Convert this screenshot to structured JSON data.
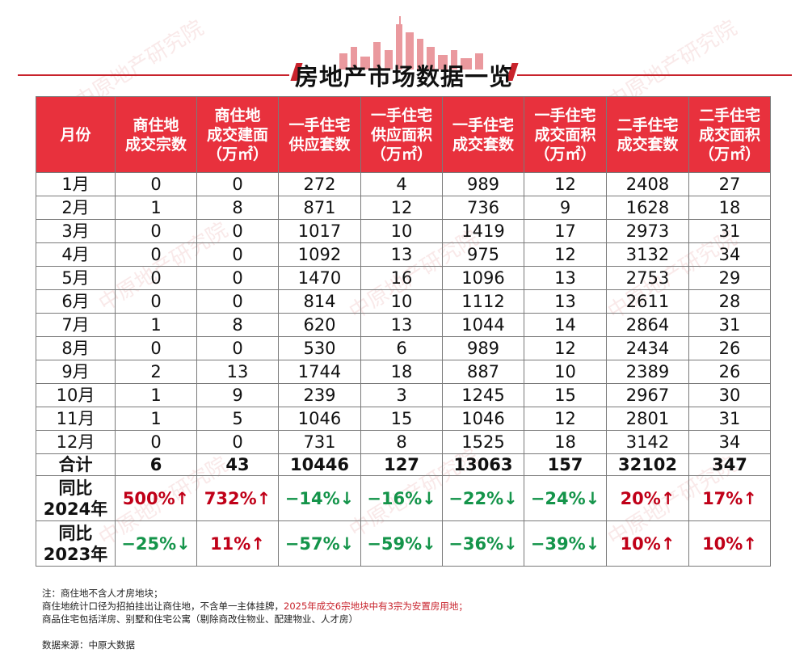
{
  "header": {
    "title": "房地产市场数据一览",
    "watermark": "中原地产研究院"
  },
  "table": {
    "columns": [
      "月份",
      "商住地\n成交宗数",
      "商住地\n成交建面\n（万㎡）",
      "一手住宅\n供应套数",
      "一手住宅\n供应面积\n（万㎡）",
      "一手住宅\n成交套数",
      "一手住宅\n成交面积\n（万㎡）",
      "二手住宅\n成交套数",
      "二手住宅\n成交面积\n（万㎡）"
    ],
    "rows": [
      [
        "1月",
        "0",
        "0",
        "272",
        "4",
        "989",
        "12",
        "2408",
        "27"
      ],
      [
        "2月",
        "1",
        "8",
        "871",
        "12",
        "736",
        "9",
        "1628",
        "18"
      ],
      [
        "3月",
        "0",
        "0",
        "1017",
        "10",
        "1419",
        "17",
        "2973",
        "31"
      ],
      [
        "4月",
        "0",
        "0",
        "1092",
        "13",
        "975",
        "12",
        "3132",
        "34"
      ],
      [
        "5月",
        "0",
        "0",
        "1470",
        "16",
        "1096",
        "13",
        "2753",
        "29"
      ],
      [
        "6月",
        "0",
        "0",
        "814",
        "10",
        "1112",
        "13",
        "2611",
        "28"
      ],
      [
        "7月",
        "1",
        "8",
        "620",
        "13",
        "1044",
        "14",
        "2864",
        "31"
      ],
      [
        "8月",
        "0",
        "0",
        "530",
        "6",
        "989",
        "12",
        "2434",
        "26"
      ],
      [
        "9月",
        "2",
        "13",
        "1744",
        "18",
        "887",
        "10",
        "2389",
        "26"
      ],
      [
        "10月",
        "1",
        "9",
        "239",
        "3",
        "1245",
        "15",
        "2967",
        "30"
      ],
      [
        "11月",
        "1",
        "5",
        "1046",
        "15",
        "1046",
        "12",
        "2801",
        "31"
      ],
      [
        "12月",
        "0",
        "0",
        "731",
        "8",
        "1525",
        "18",
        "3142",
        "34"
      ]
    ],
    "total": [
      "合计",
      "6",
      "43",
      "10446",
      "127",
      "13063",
      "157",
      "32102",
      "347"
    ],
    "yoy": [
      {
        "label": "同比\n2024年",
        "values": [
          {
            "text": "500%↑",
            "dir": "up"
          },
          {
            "text": "732%↑",
            "dir": "up"
          },
          {
            "text": "−14%↓",
            "dir": "down"
          },
          {
            "text": "−16%↓",
            "dir": "down"
          },
          {
            "text": "−22%↓",
            "dir": "down"
          },
          {
            "text": "−24%↓",
            "dir": "down"
          },
          {
            "text": "20%↑",
            "dir": "up"
          },
          {
            "text": "17%↑",
            "dir": "up"
          }
        ]
      },
      {
        "label": "同比\n2023年",
        "values": [
          {
            "text": "−25%↓",
            "dir": "down"
          },
          {
            "text": "11%↑",
            "dir": "up"
          },
          {
            "text": "−57%↓",
            "dir": "down"
          },
          {
            "text": "−59%↓",
            "dir": "down"
          },
          {
            "text": "−36%↓",
            "dir": "down"
          },
          {
            "text": "−39%↓",
            "dir": "down"
          },
          {
            "text": "10%↑",
            "dir": "up"
          },
          {
            "text": "10%↑",
            "dir": "up"
          }
        ]
      }
    ]
  },
  "notes": {
    "line1": "注：商住地不含人才房地块；",
    "line2_a": "商住地统计口径为招拍挂出让商住地，不含单一主体挂牌，",
    "line2_b": "2025年成交6宗地块中有3宗为安置房用地；",
    "line3": "商品住宅包括洋房、别墅和住宅公寓（剔除商改住物业、配建物业、人才房）",
    "source": "数据来源：中原大数据"
  },
  "colors": {
    "header_red": "#e8313d",
    "accent_red": "#c8232c",
    "up": "#c00018",
    "down": "#14944a"
  }
}
